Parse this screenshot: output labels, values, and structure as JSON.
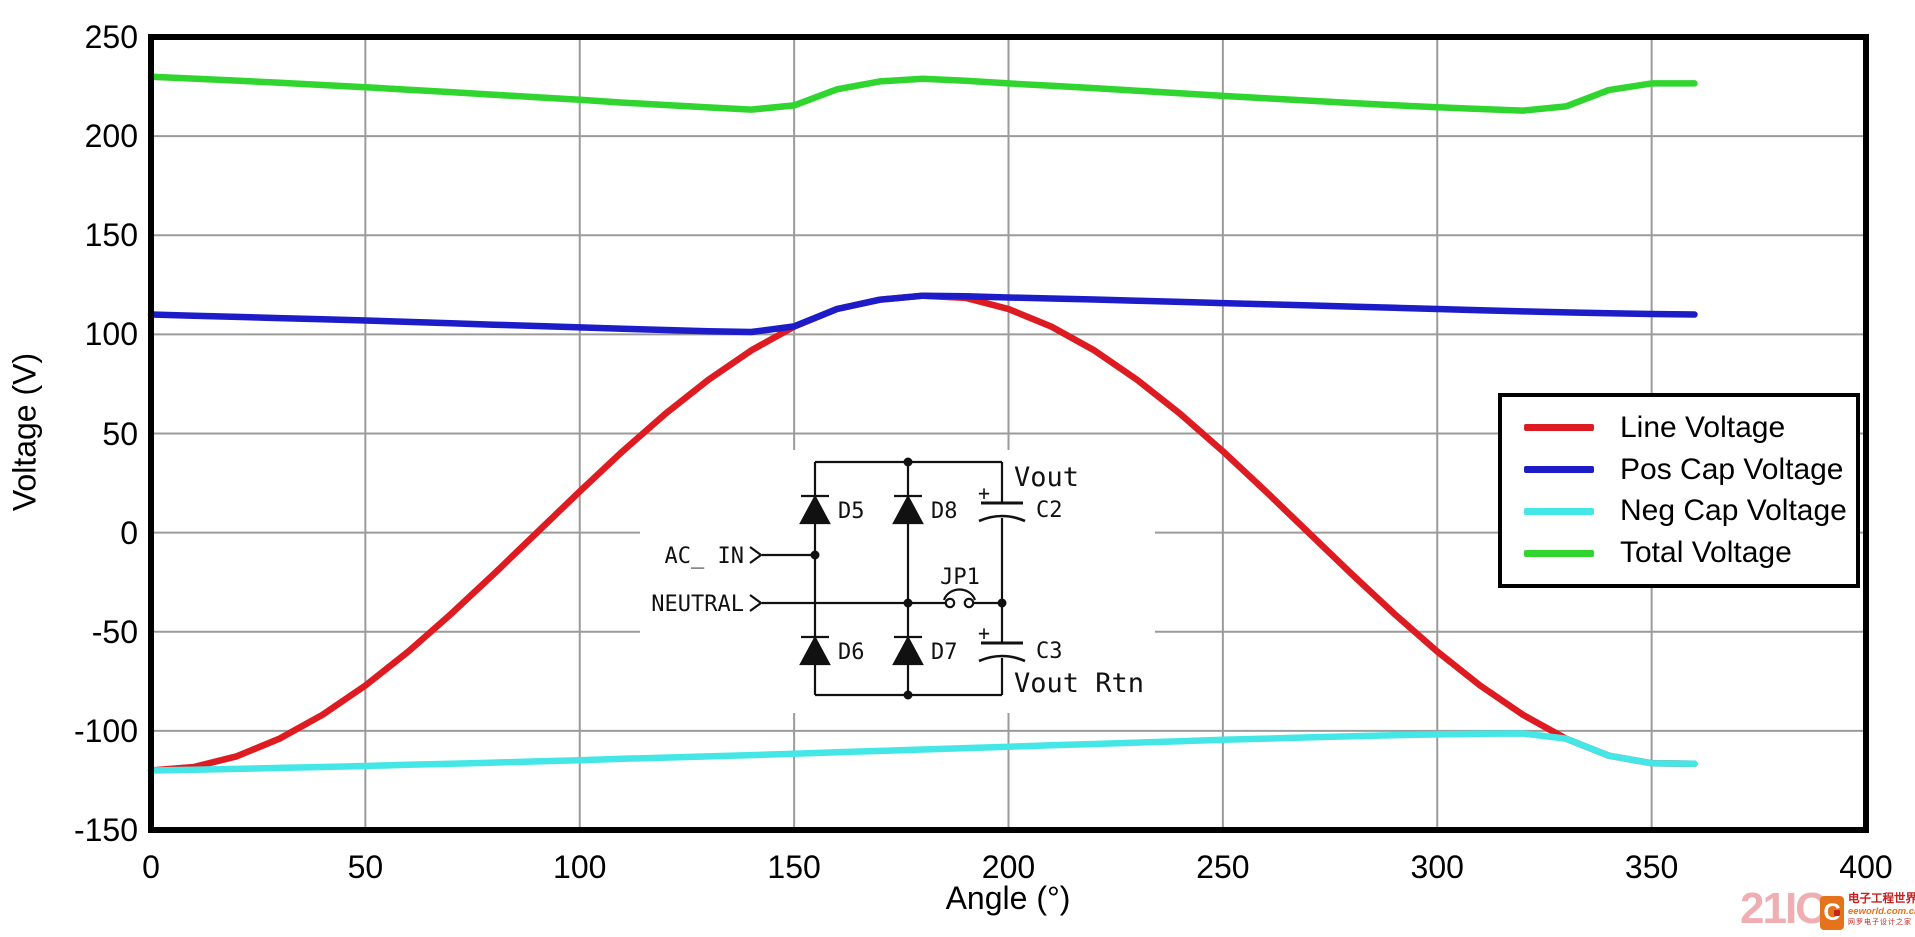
{
  "axes": {
    "x": {
      "label": "Angle (°)",
      "min": 0,
      "max": 400,
      "tick_step": 50,
      "ticks": [
        "0",
        "50",
        "100",
        "150",
        "200",
        "250",
        "300",
        "350",
        "400"
      ]
    },
    "y": {
      "label": "Voltage (V)",
      "min": -150,
      "max": 250,
      "tick_step": 50,
      "ticks": [
        "250",
        "200",
        "150",
        "100",
        "50",
        "0",
        "-50",
        "-100",
        "-150"
      ]
    }
  },
  "legend": {
    "items": [
      {
        "label": "Line Voltage",
        "color": "#dd1b20"
      },
      {
        "label": "Pos Cap Voltage",
        "color": "#1c1cc8"
      },
      {
        "label": "Neg Cap Voltage",
        "color": "#45e6e6"
      },
      {
        "label": "Total Voltage",
        "color": "#30d530"
      }
    ]
  },
  "chart_data": {
    "type": "line",
    "title": "",
    "xlabel": "Angle (°)",
    "ylabel": "Voltage (V)",
    "xlim": [
      0,
      400
    ],
    "ylim": [
      -150,
      250
    ],
    "grid": true,
    "legend_position": "right-center-box",
    "x_range_plotted": [
      0,
      360
    ],
    "x": [
      0,
      10,
      20,
      30,
      40,
      50,
      60,
      70,
      80,
      90,
      100,
      110,
      120,
      130,
      140,
      150,
      160,
      170,
      180,
      190,
      200,
      210,
      220,
      230,
      240,
      250,
      260,
      270,
      280,
      290,
      300,
      310,
      320,
      330,
      340,
      350,
      360
    ],
    "series": [
      {
        "name": "Line Voltage",
        "color": "#dd1b20",
        "values": [
          -120,
          -118.2,
          -112.8,
          -103.9,
          -91.9,
          -77.1,
          -60,
          -41,
          -20.8,
          0,
          20.8,
          41,
          60,
          77.1,
          91.9,
          103.9,
          112.8,
          117.5,
          119.5,
          118.4,
          112.8,
          103.9,
          91.9,
          77.1,
          60,
          41,
          20.8,
          0,
          -20.8,
          -41,
          -60,
          -77.1,
          -91.9,
          -103.9,
          -112.5,
          -116.3,
          -116.6
        ]
      },
      {
        "name": "Pos Cap Voltage",
        "color": "#1c1cc8",
        "values": [
          110,
          109.4,
          108.8,
          108.2,
          107.6,
          107,
          106.3,
          105.6,
          104.9,
          104.2,
          103.5,
          102.8,
          102.2,
          101.6,
          101.2,
          104,
          112.8,
          117.5,
          119.5,
          119.2,
          118.6,
          118.1,
          117.6,
          117,
          116.4,
          115.8,
          115.2,
          114.6,
          114,
          113.4,
          112.8,
          112.2,
          111.6,
          111.1,
          110.7,
          110.3,
          110
        ]
      },
      {
        "name": "Neg Cap Voltage",
        "color": "#45e6e6",
        "values": [
          -120,
          -119.6,
          -119.2,
          -118.7,
          -118.2,
          -117.7,
          -117.1,
          -116.6,
          -116,
          -115.4,
          -114.8,
          -114.1,
          -113.5,
          -112.9,
          -112.2,
          -111.5,
          -110.8,
          -110.1,
          -109.4,
          -108.7,
          -108,
          -107.3,
          -106.6,
          -105.9,
          -105.2,
          -104.5,
          -103.9,
          -103.3,
          -102.7,
          -102.2,
          -101.8,
          -101.5,
          -101.3,
          -103.9,
          -112.5,
          -116.3,
          -116.6
        ]
      },
      {
        "name": "Total Voltage",
        "color": "#30d530",
        "values": [
          230,
          229,
          228,
          226.9,
          225.8,
          224.7,
          223.4,
          222.2,
          220.9,
          219.6,
          218.3,
          216.9,
          215.7,
          214.5,
          213.4,
          215.5,
          223.6,
          227.6,
          228.9,
          227.9,
          226.6,
          225.4,
          224.2,
          222.9,
          221.6,
          220.3,
          219.1,
          217.9,
          216.7,
          215.6,
          214.6,
          213.7,
          212.9,
          215,
          223.2,
          226.6,
          226.6
        ]
      }
    ]
  },
  "circuit": {
    "ac_in": "AC_ IN",
    "neutral": "NEUTRAL",
    "jp1": "JP1",
    "d5": "D5",
    "d8": "D8",
    "d6": "D6",
    "d7": "D7",
    "c2": "C2",
    "c3": "C3",
    "plus_top": "+",
    "plus_bottom": "+",
    "vout": "Vout",
    "vout_rtn": "Vout Rtn"
  },
  "watermark": {
    "site_21ic": "21IC",
    "logo_letter": "C",
    "brand": "电子工程世界",
    "url": "eeworld.com.cn",
    "tagline": "网罗电子设计之家"
  }
}
